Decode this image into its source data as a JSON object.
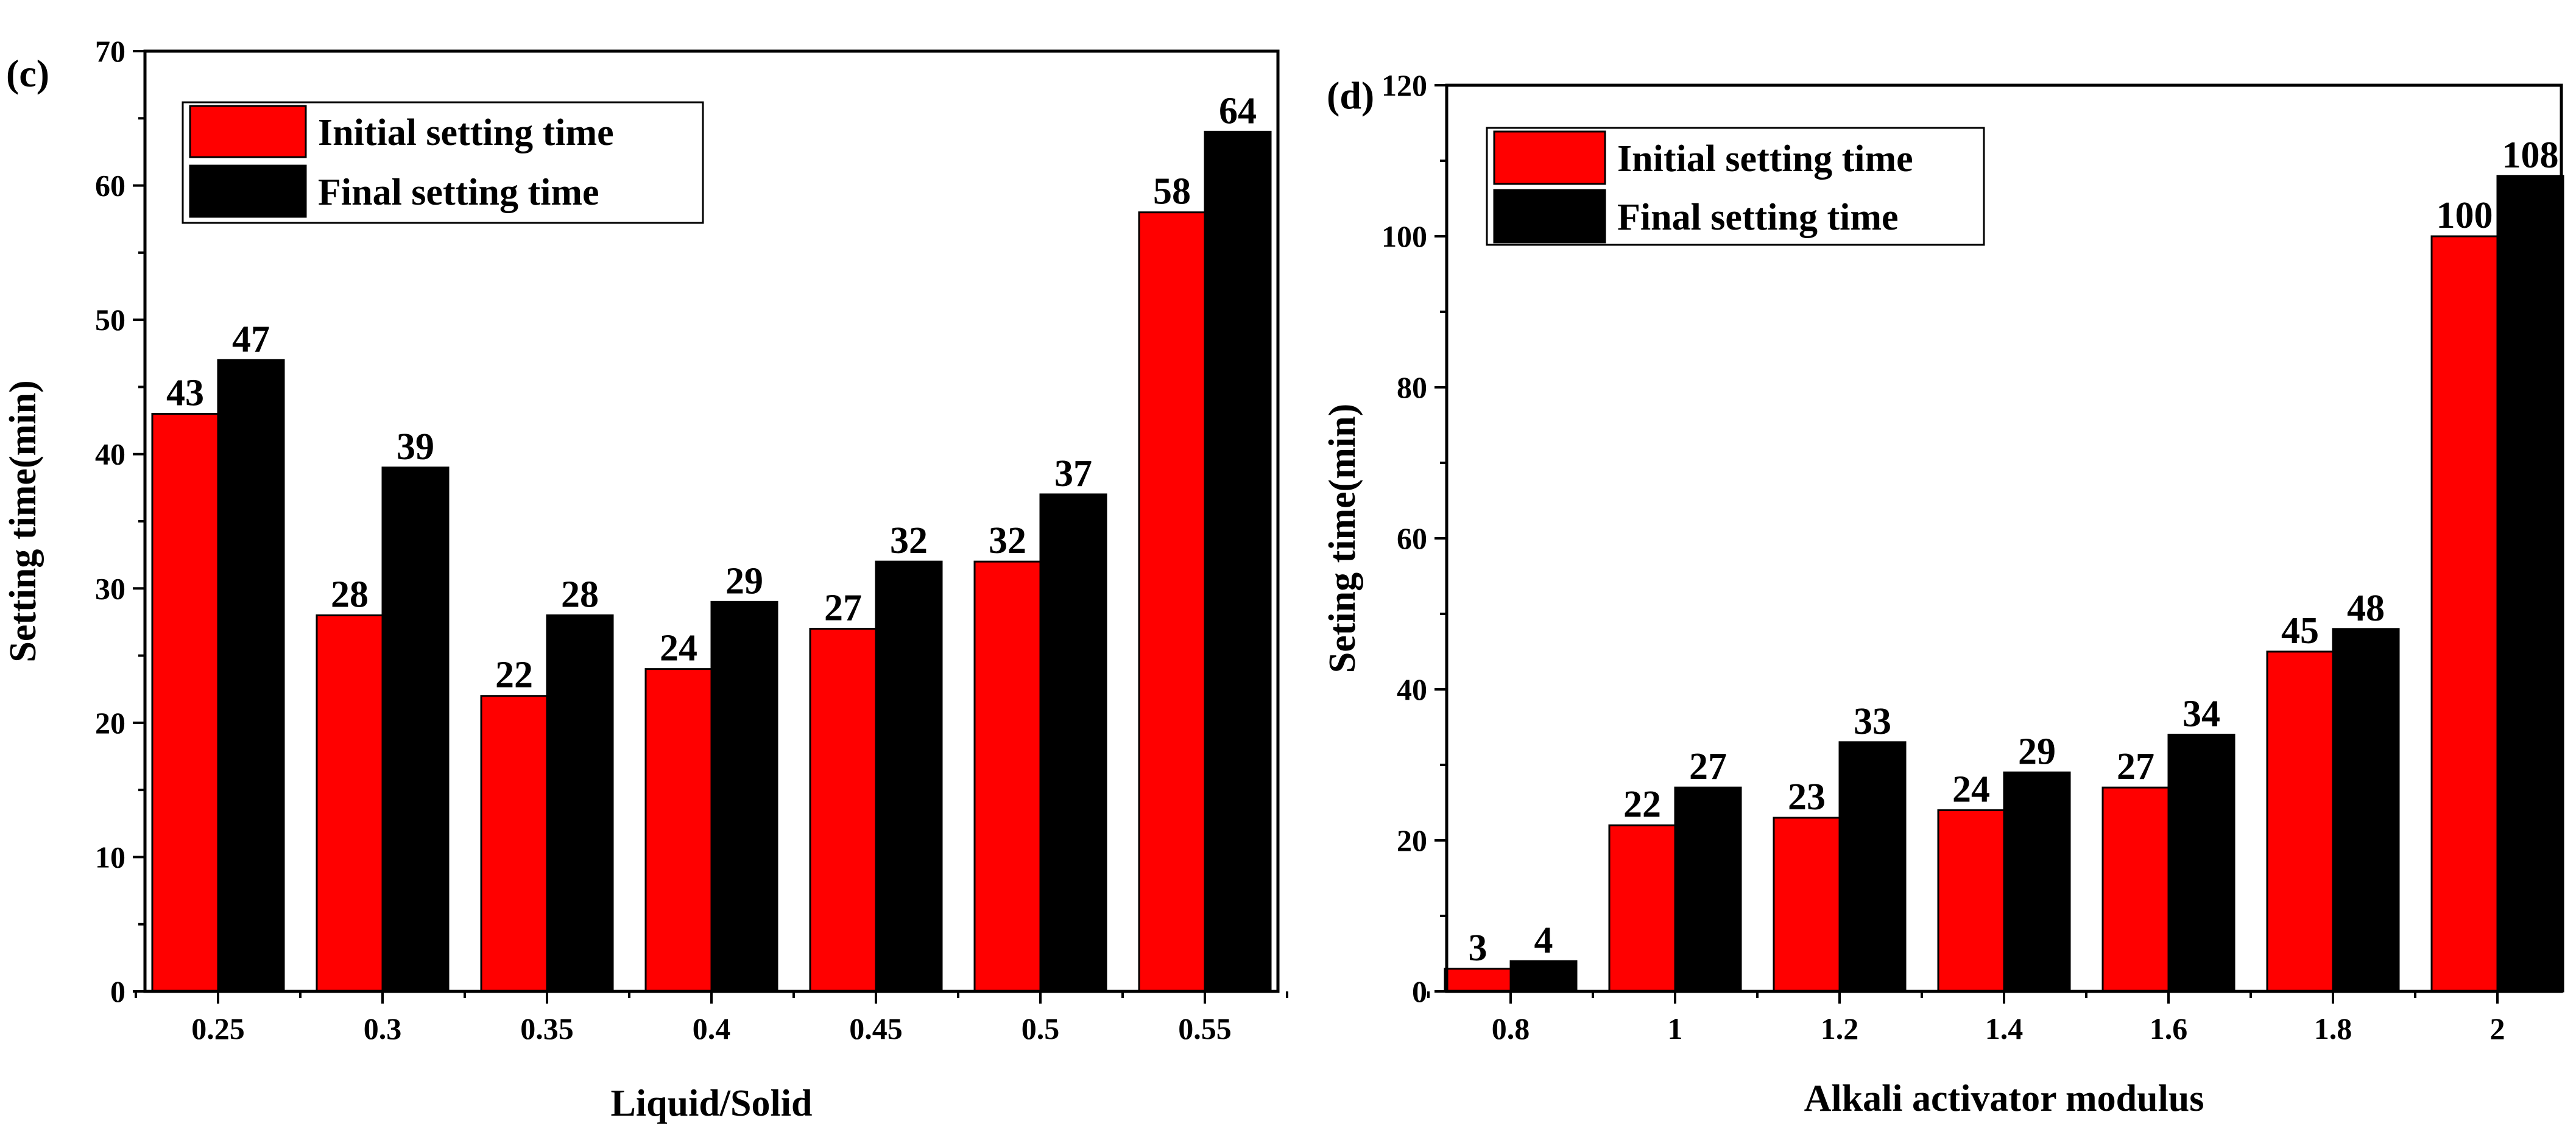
{
  "colors": {
    "initial": "#ff0000",
    "final": "#000000",
    "axis": "#000000"
  },
  "chart_data": [
    {
      "type": "bar",
      "panel_label": "(c)",
      "xlabel": "Liquid/Solid",
      "ylabel": "Setting time(min)",
      "categories": [
        "0.25",
        "0.3",
        "0.35",
        "0.4",
        "0.45",
        "0.5",
        "0.55"
      ],
      "ylim": [
        0,
        70
      ],
      "yticks": [
        "0",
        "10",
        "20",
        "30",
        "40",
        "50",
        "60",
        "70"
      ],
      "series": [
        {
          "name": "Initial setting time",
          "values": [
            43,
            28,
            22,
            24,
            27,
            32,
            58
          ]
        },
        {
          "name": "Final setting time",
          "values": [
            47,
            39,
            28,
            29,
            32,
            37,
            64
          ]
        }
      ],
      "legend": "top-left",
      "grid": false
    },
    {
      "type": "bar",
      "panel_label": "(d)",
      "xlabel": "Alkali activator modulus",
      "ylabel": "Seting time(min)",
      "categories": [
        "0.8",
        "1",
        "1.2",
        "1.4",
        "1.6",
        "1.8",
        "2"
      ],
      "ylim": [
        0,
        120
      ],
      "yticks": [
        "0",
        "20",
        "40",
        "60",
        "80",
        "100",
        "120"
      ],
      "series": [
        {
          "name": "Initial setting time",
          "values": [
            3,
            22,
            23,
            24,
            27,
            45,
            100
          ]
        },
        {
          "name": "Final setting time",
          "values": [
            4,
            27,
            33,
            29,
            34,
            48,
            108
          ]
        }
      ],
      "legend": "top-left",
      "grid": false
    }
  ]
}
